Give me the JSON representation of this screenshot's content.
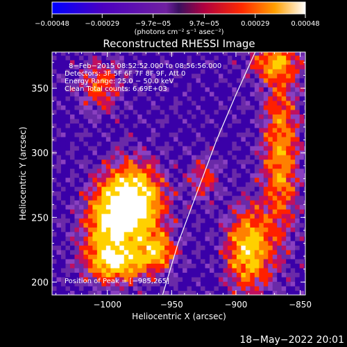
{
  "chart_data": {
    "type": "heatmap",
    "title": "Reconstructed RHESSI Image",
    "xlabel": "Heliocentric X (arcsec)",
    "ylabel": "Heliocentric Y (arcsec)",
    "xlim": [
      -1043,
      -846
    ],
    "ylim": [
      190,
      378
    ],
    "x_ticks": [
      -1000,
      -950,
      -900,
      -850
    ],
    "x_tick_labels": [
      "−1000",
      "−950",
      "−900",
      "−850"
    ],
    "y_ticks": [
      200,
      250,
      300,
      350
    ],
    "y_tick_labels": [
      "200",
      "250",
      "300",
      "350"
    ],
    "colorbar": {
      "range": [
        -0.00048,
        0.00048
      ],
      "ticks": [
        -0.00048,
        -0.00029,
        -9.7e-05,
        9.7e-05,
        0.00029,
        0.00048
      ],
      "tick_labels": [
        "−0.00048",
        "−0.00029",
        "−9.7e−05",
        "9.7e−05",
        "0.00029",
        "0.00048"
      ],
      "unit_label": "(photons cm⁻² s⁻¹ asec⁻²)"
    },
    "annotations": [
      "8−Feb−2015 08:52:52.000 to 08:56:56.000",
      "Detectors: 3F 5F 6F 7F 8F 9F, Att 0",
      "Energy Range: 25.0 − 50.0 keV",
      "Clean     Total counts: 6.69E+03"
    ],
    "peak_label": "Position of Peak = [−985,265]",
    "peak": [
      -985,
      265
    ],
    "limb": [
      [
        -957,
        190
      ],
      [
        -945,
        230
      ],
      [
        -930,
        270
      ],
      [
        -915,
        310
      ],
      [
        -900,
        345
      ],
      [
        -885,
        378
      ]
    ],
    "sources": [
      {
        "x": -980,
        "y": 262,
        "sx": 16,
        "sy": 20,
        "amp": 1.0
      },
      {
        "x": -1000,
        "y": 240,
        "sx": 14,
        "sy": 22,
        "amp": 0.55
      },
      {
        "x": -990,
        "y": 215,
        "sx": 18,
        "sy": 10,
        "amp": 0.55
      },
      {
        "x": -960,
        "y": 225,
        "sx": 10,
        "sy": 10,
        "amp": 0.5
      },
      {
        "x": -890,
        "y": 225,
        "sx": 12,
        "sy": 22,
        "amp": 0.7
      },
      {
        "x": -865,
        "y": 300,
        "sx": 10,
        "sy": 45,
        "amp": 0.55
      },
      {
        "x": -870,
        "y": 370,
        "sx": 14,
        "sy": 10,
        "amp": 0.45
      },
      {
        "x": -1005,
        "y": 352,
        "sx": 12,
        "sy": 14,
        "amp": 0.4
      },
      {
        "x": -925,
        "y": 280,
        "sx": 8,
        "sy": 12,
        "amp": 0.35
      }
    ],
    "colors": [
      "#0000ff",
      "#3a00a8",
      "#6a2aa8",
      "#8a40c0",
      "#c01060",
      "#ff2000",
      "#ff8000",
      "#ffd000",
      "#ffffff"
    ]
  },
  "footer": {
    "date": "18−May−2022 20:01"
  }
}
